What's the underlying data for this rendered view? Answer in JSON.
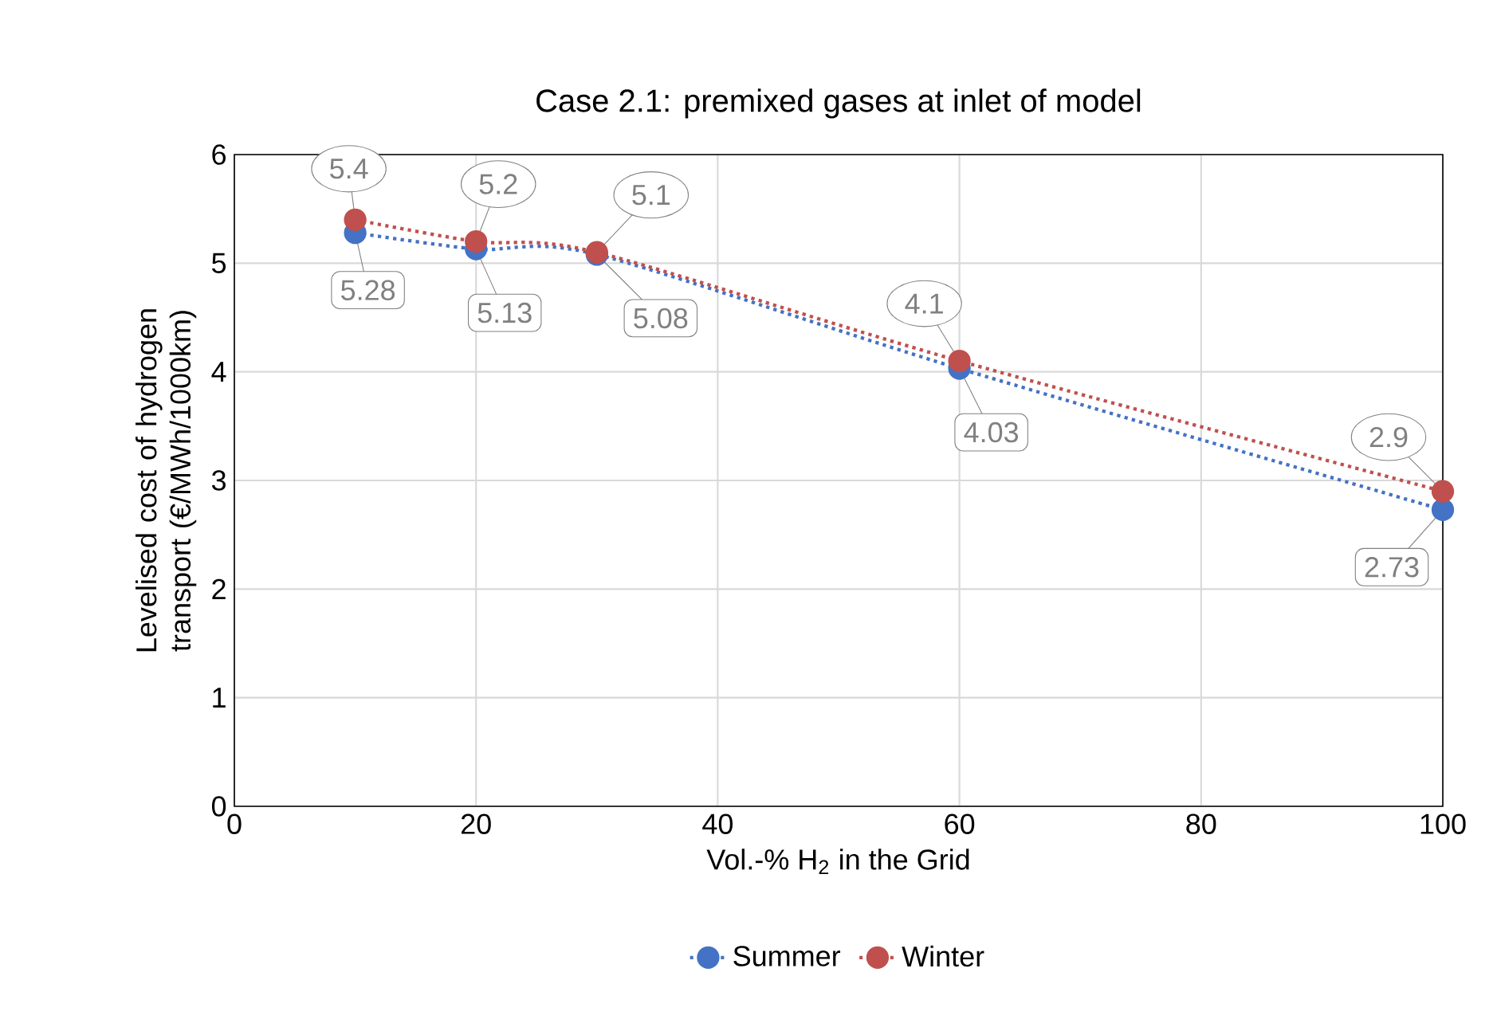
{
  "chart_data": {
    "type": "line",
    "title": "Case 2.1: premixed gases at inlet of model",
    "xlabel": "Vol.-% H$_{2}$ in the Grid",
    "ylabel": "Levelised cost of hydrogen transport (€/MWh/1000km)",
    "x": [
      10,
      20,
      30,
      60,
      100
    ],
    "series": [
      {
        "name": "Summer",
        "color": "#4472c4",
        "values": [
          5.28,
          5.13,
          5.08,
          4.03,
          2.73
        ]
      },
      {
        "name": "Winter",
        "color": "#c0504d",
        "values": [
          5.4,
          5.2,
          5.1,
          4.1,
          2.9
        ]
      }
    ],
    "xlim": [
      0,
      100
    ],
    "xticks": [
      0,
      20,
      40,
      60,
      80,
      100
    ],
    "ylim": [
      0,
      6
    ],
    "yticks": [
      0,
      1,
      2,
      3,
      4,
      5,
      6
    ],
    "grid": true,
    "legend": "bottom",
    "marker": "circle",
    "line_style": "dotted",
    "data_labels": true
  }
}
